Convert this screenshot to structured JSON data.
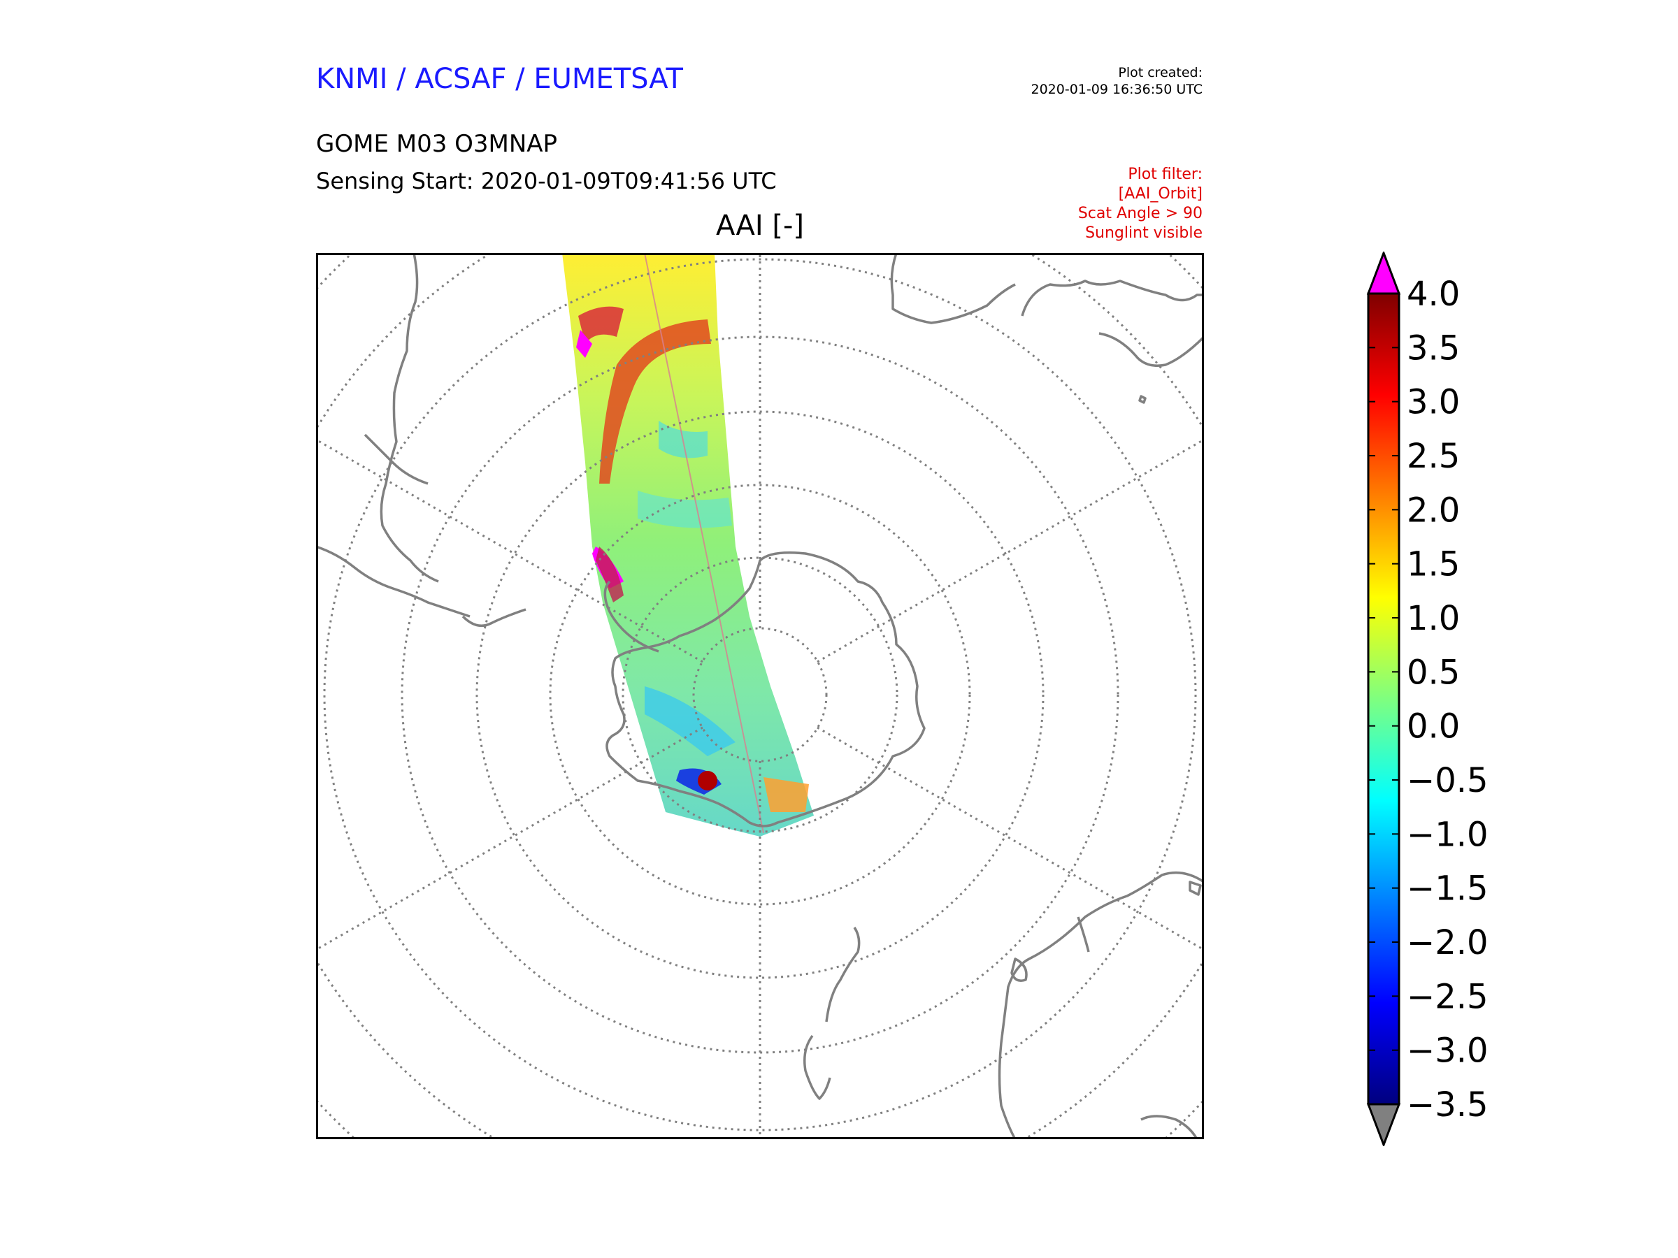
{
  "header": {
    "organization": "KNMI / ACSAF / EUMETSAT",
    "plot_created_label": "Plot created:",
    "plot_created_time": "2020-01-09 16:36:50 UTC",
    "product": "GOME M03 O3MNAP",
    "sensing_start": "Sensing Start: 2020-01-09T09:41:56 UTC",
    "filter_lines": [
      "Plot filter:",
      "[AAI_Orbit]",
      "Scat Angle > 90",
      "Sunglint visible"
    ]
  },
  "map": {
    "title": "AAI [-]",
    "projection": "south-polar-stereographic",
    "colors": {
      "coastline": "#808080",
      "graticule": "#808080",
      "frame": "#000000"
    }
  },
  "colorbar": {
    "ticks": [
      "4.0",
      "3.5",
      "3.0",
      "2.5",
      "2.0",
      "1.5",
      "1.0",
      "0.5",
      "0.0",
      "−0.5",
      "−1.0",
      "−1.5",
      "−2.0",
      "−2.5",
      "−3.0",
      "−3.5"
    ],
    "tick_values": [
      4.0,
      3.5,
      3.0,
      2.5,
      2.0,
      1.5,
      1.0,
      0.5,
      0.0,
      -0.5,
      -1.0,
      -1.5,
      -2.0,
      -2.5,
      -3.0,
      -3.5
    ],
    "range": [
      -3.5,
      4.0
    ],
    "over_color": "#ff00ff",
    "under_color": "#808080",
    "colormap": [
      "#00007f",
      "#0000ff",
      "#007fff",
      "#00ffff",
      "#7fff7f",
      "#ffff00",
      "#ff7f00",
      "#ff0000",
      "#7f0000"
    ]
  }
}
